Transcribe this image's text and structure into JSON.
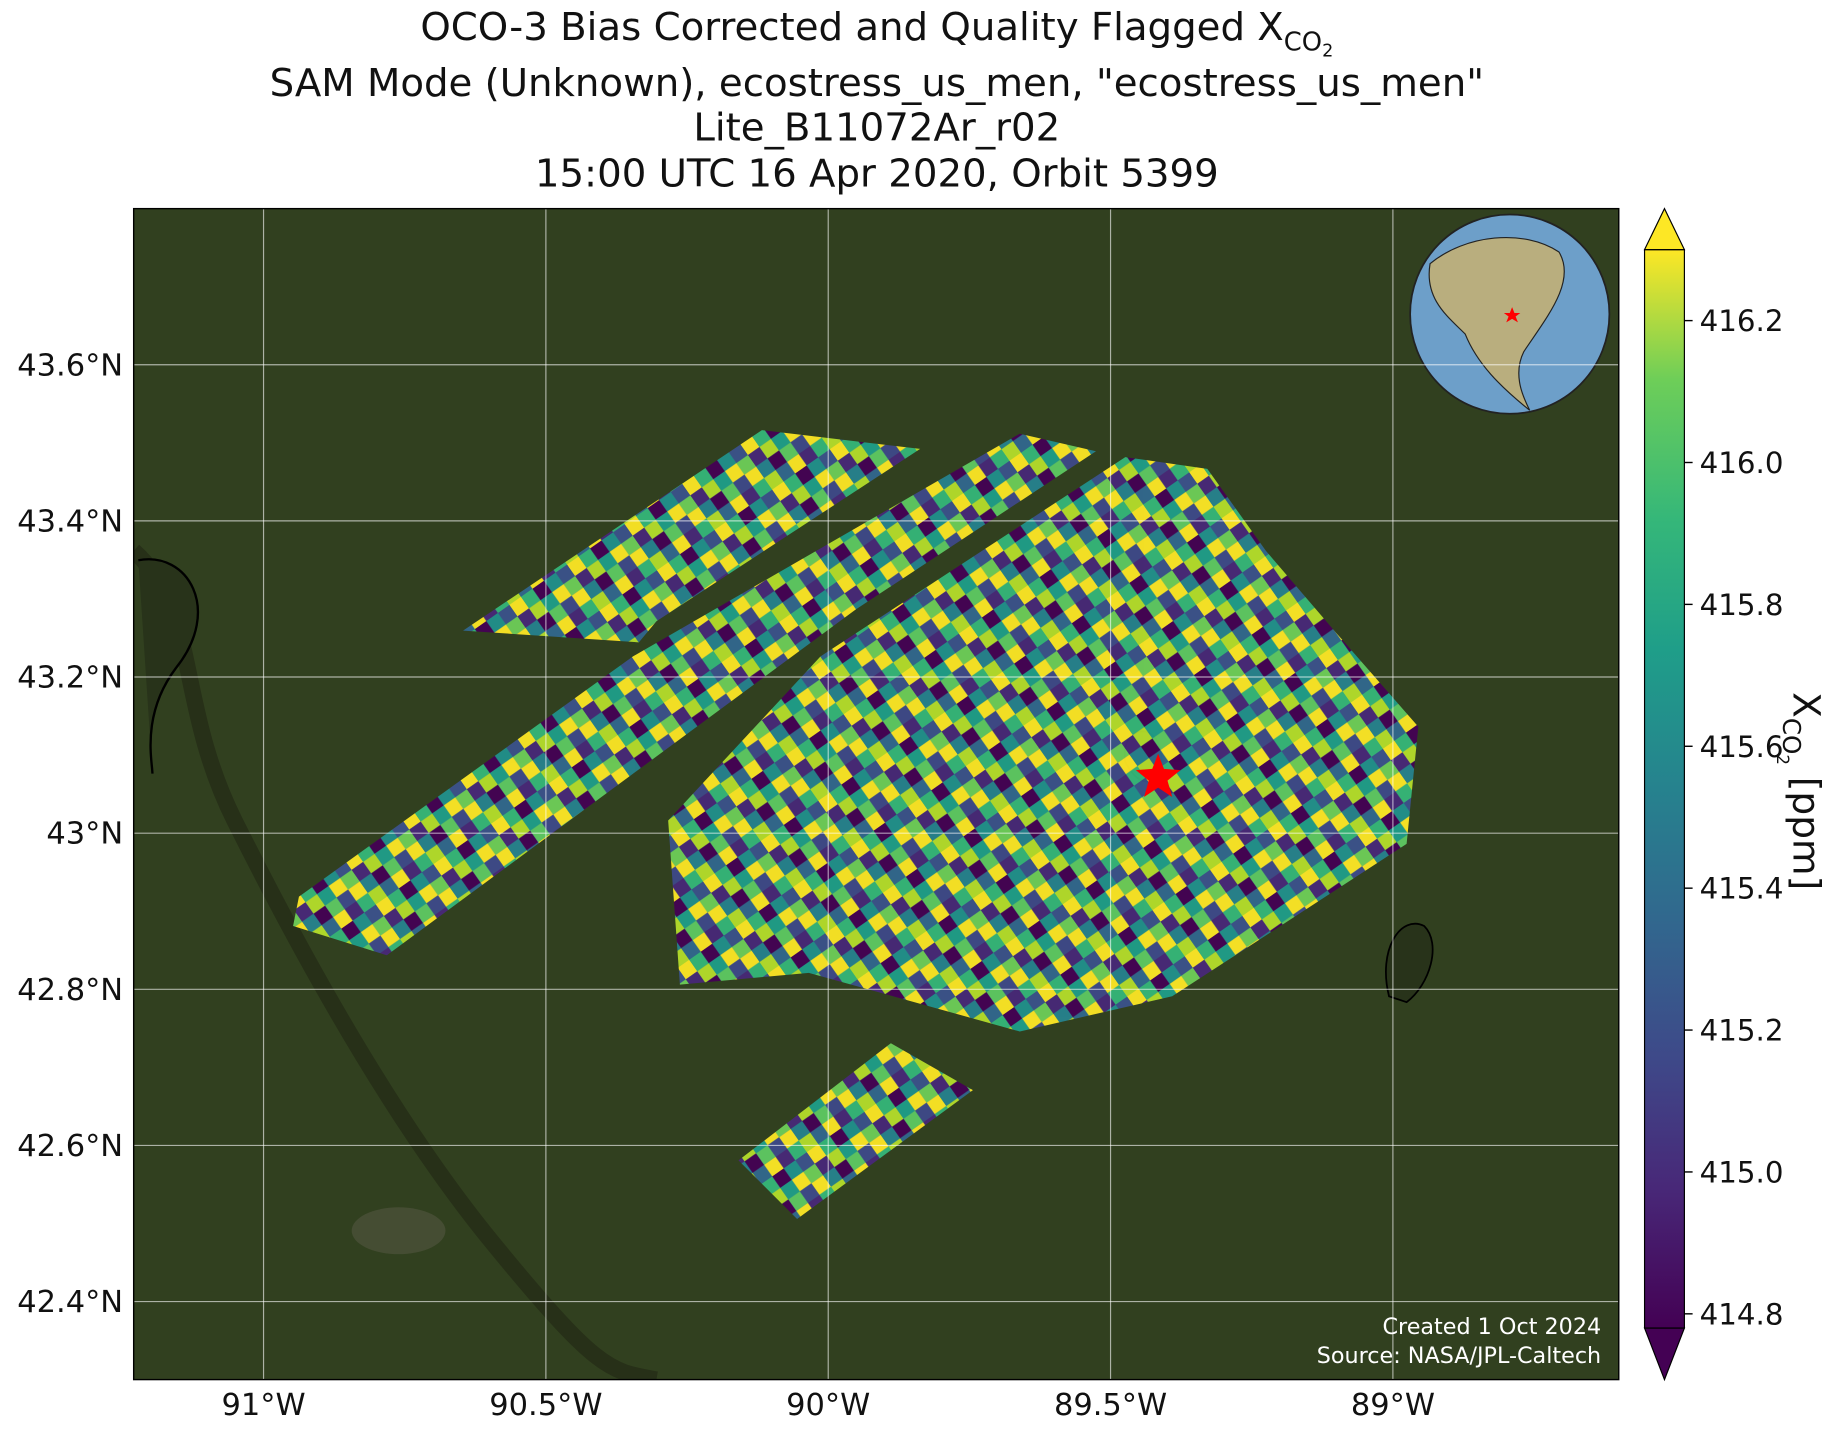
{
  "map": {
    "title": {
      "line1_main": "OCO-3 Bias Corrected and Quality Flagged X",
      "line1_sub": "CO",
      "line1_subsub": "2",
      "line2": "SAM Mode (Unknown), ecostress_us_men, \"ecostress_us_men\"",
      "line3": "Lite_B11072Ar_r02",
      "line4": "15:00 UTC 16 Apr 2020, Orbit 5399"
    },
    "xlim": [
      -91.23,
      -88.6
    ],
    "ylim": [
      42.3,
      43.8
    ],
    "xticks": [
      {
        "value": -91,
        "label": "91°W"
      },
      {
        "value": -90.5,
        "label": "90.5°W"
      },
      {
        "value": -90,
        "label": "90°W"
      },
      {
        "value": -89.5,
        "label": "89.5°W"
      },
      {
        "value": -89,
        "label": "89°W"
      }
    ],
    "yticks": [
      {
        "value": 42.4,
        "label": "42.4°N"
      },
      {
        "value": 42.6,
        "label": "42.6°N"
      },
      {
        "value": 42.8,
        "label": "42.8°N"
      },
      {
        "value": 43,
        "label": "43°N"
      },
      {
        "value": 43.2,
        "label": "43.2°N"
      },
      {
        "value": 43.4,
        "label": "43.4°N"
      },
      {
        "value": 43.6,
        "label": "43.6°N"
      }
    ],
    "grid": true,
    "colorbar": {
      "clim": [
        414.78,
        416.3
      ],
      "ticks": [
        414.8,
        {
          "value": 415,
          "label": "415.0"
        },
        415.2,
        415.4,
        415.6,
        415.8,
        {
          "value": 416,
          "label": "416.0"
        },
        416.2
      ],
      "label_main": "X",
      "label_sub": "CO",
      "label_subsub": "2",
      "label_unit": " [ppm]"
    },
    "credit": [
      "Created 1 Oct 2024",
      "Source: NASA/JPL-Caltech"
    ]
  }
}
